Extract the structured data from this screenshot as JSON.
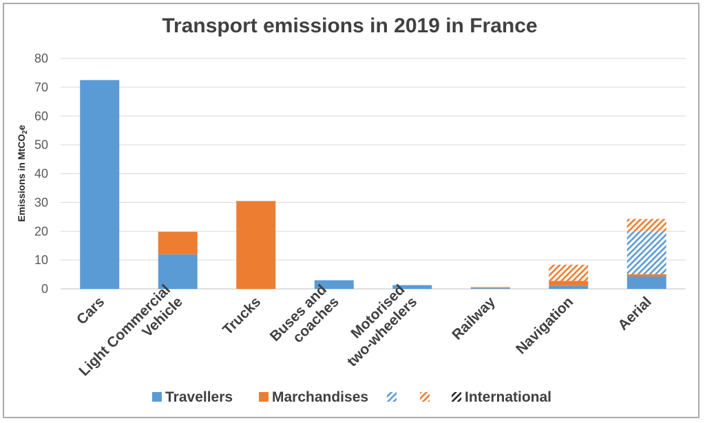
{
  "chart_data": {
    "type": "bar",
    "stacked": true,
    "title": "Transport emissions in 2019 in France",
    "ylabel_prefix": "Emissions in MtCO",
    "ylabel_sub": "2",
    "ylabel_suffix": "e",
    "xlabel": "",
    "ylim": [
      0,
      80
    ],
    "yticks": [
      "0",
      "10",
      "20",
      "30",
      "40",
      "50",
      "60",
      "70",
      "80"
    ],
    "grid": true,
    "legend_position": "bottom",
    "categories": [
      [
        "Cars"
      ],
      [
        "Light Commercial",
        "Vehicle"
      ],
      [
        "Trucks"
      ],
      [
        "Buses and",
        "coaches"
      ],
      [
        "Motorised",
        "two-wheelers"
      ],
      [
        "Railway"
      ],
      [
        "Navigation"
      ],
      [
        "Aerial"
      ]
    ],
    "series": [
      {
        "name": "Travellers",
        "color": "#5b9bd5",
        "pattern": "solid",
        "values": [
          72.5,
          12,
          0,
          3,
          1.3,
          0.3,
          1,
          4.3
        ]
      },
      {
        "name": "Marchandises",
        "color": "#ed7d31",
        "pattern": "solid",
        "values": [
          0,
          7.8,
          30.5,
          0,
          0,
          0.3,
          1.8,
          0.8
        ]
      },
      {
        "name": "",
        "color": "#5b9bd5",
        "pattern": "hatch",
        "values": [
          0,
          0,
          0,
          0,
          0,
          0,
          0,
          14.7
        ]
      },
      {
        "name": "",
        "color": "#ed7d31",
        "pattern": "hatch",
        "values": [
          0,
          0,
          0,
          0,
          0,
          0,
          5.6,
          4.5
        ]
      },
      {
        "name": "International",
        "color": "#262626",
        "pattern": "hatch",
        "values": [
          0,
          0,
          0,
          0,
          0,
          0,
          0,
          0
        ]
      }
    ]
  }
}
